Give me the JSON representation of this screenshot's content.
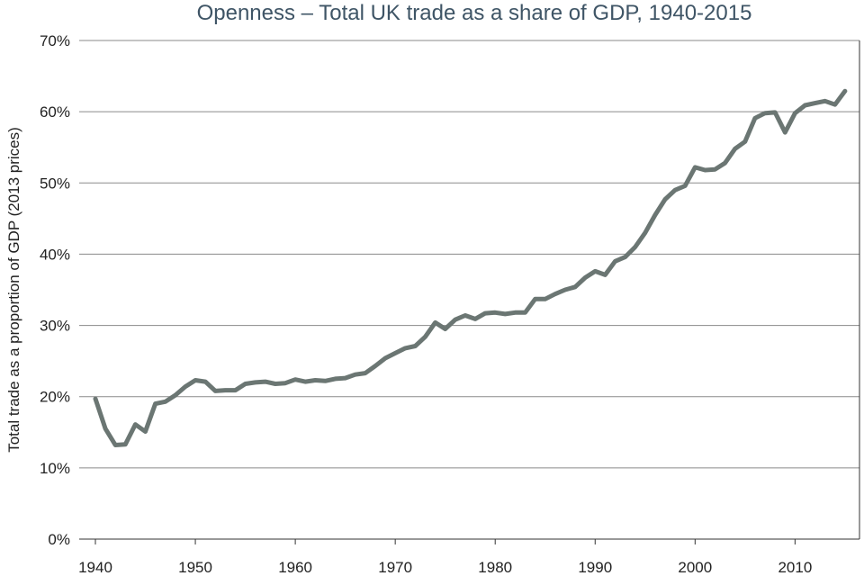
{
  "chart_data": {
    "type": "line",
    "title": "Openness – Total UK trade as a share of GDP, 1940-2015",
    "xlabel": "",
    "ylabel": "Total trade as a proportion of GDP (2013 prices)",
    "xlim": [
      1940,
      2016
    ],
    "ylim": [
      0,
      70
    ],
    "x_ticks": [
      1940,
      1950,
      1960,
      1970,
      1980,
      1990,
      2000,
      2010
    ],
    "y_ticks": [
      0,
      10,
      20,
      30,
      40,
      50,
      60,
      70
    ],
    "y_tick_labels": [
      "0%",
      "10%",
      "20%",
      "30%",
      "40%",
      "50%",
      "60%",
      "70%"
    ],
    "grid": true,
    "legend": "none",
    "series": [
      {
        "name": "Total UK trade as a share of GDP",
        "color": "#6b7673",
        "x": [
          1940,
          1941,
          1942,
          1943,
          1944,
          1945,
          1946,
          1947,
          1948,
          1949,
          1950,
          1951,
          1952,
          1953,
          1954,
          1955,
          1956,
          1957,
          1958,
          1959,
          1960,
          1961,
          1962,
          1963,
          1964,
          1965,
          1966,
          1967,
          1968,
          1969,
          1970,
          1971,
          1972,
          1973,
          1974,
          1975,
          1976,
          1977,
          1978,
          1979,
          1980,
          1981,
          1982,
          1983,
          1984,
          1985,
          1986,
          1987,
          1988,
          1989,
          1990,
          1991,
          1992,
          1993,
          1994,
          1995,
          1996,
          1997,
          1998,
          1999,
          2000,
          2001,
          2002,
          2003,
          2004,
          2005,
          2006,
          2007,
          2008,
          2009,
          2010,
          2011,
          2012,
          2013,
          2014,
          2015
        ],
        "values": [
          19.7,
          15.5,
          13.2,
          13.3,
          16.1,
          15.1,
          19.0,
          19.3,
          20.2,
          21.4,
          22.3,
          22.1,
          20.8,
          20.9,
          20.9,
          21.8,
          22.0,
          22.1,
          21.8,
          21.9,
          22.4,
          22.1,
          22.3,
          22.2,
          22.5,
          22.6,
          23.1,
          23.3,
          24.3,
          25.4,
          26.1,
          26.8,
          27.1,
          28.4,
          30.4,
          29.5,
          30.8,
          31.4,
          30.9,
          31.7,
          31.8,
          31.6,
          31.8,
          31.8,
          33.7,
          33.7,
          34.4,
          35.0,
          35.4,
          36.7,
          37.6,
          37.1,
          39.0,
          39.6,
          41.0,
          43.0,
          45.5,
          47.7,
          49.0,
          49.6,
          52.2,
          51.8,
          51.9,
          52.8,
          54.8,
          55.8,
          59.1,
          59.8,
          59.9,
          57.1,
          59.8,
          60.9,
          61.2,
          61.5,
          61.0,
          62.9
        ]
      }
    ]
  }
}
